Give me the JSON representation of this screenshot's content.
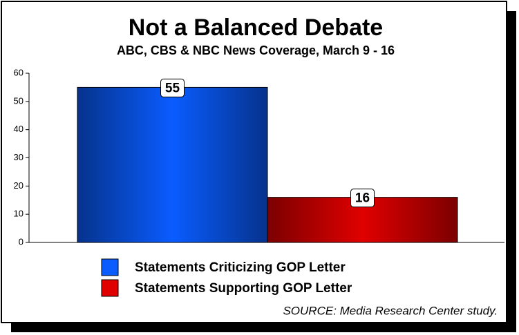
{
  "chart_data": {
    "type": "bar",
    "title": "Not a Balanced Debate",
    "subtitle": "ABC, CBS & NBC News Coverage, March 9 - 16",
    "source": "SOURCE:  Media Research Center study.",
    "series": [
      {
        "name": "Statements Criticizing GOP Letter",
        "color": "#0a5cff",
        "values": [
          55
        ]
      },
      {
        "name": "Statements Supporting GOP Letter",
        "color": "#e00000",
        "values": [
          16
        ]
      }
    ],
    "ylim": [
      0,
      60
    ],
    "yticks": [
      0,
      10,
      20,
      30,
      40,
      50,
      60
    ],
    "grid": false
  }
}
